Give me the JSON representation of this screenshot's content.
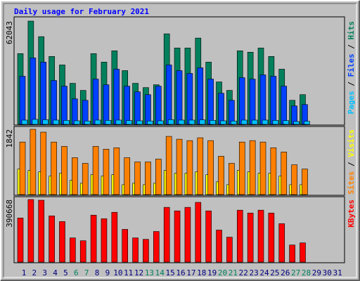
{
  "title": "Daily usage for February 2021",
  "legend_separator": " / ",
  "chart_data": [
    {
      "type": "bar",
      "ylim": [
        0,
        62043
      ],
      "yticks": [
        62043
      ],
      "series": [
        {
          "name": "Hits",
          "color": "#00805c",
          "values": [
            42495,
            62043,
            52694,
            40795,
            35696,
            24648,
            20398,
            42495,
            37396,
            44195,
            32297,
            24648,
            22097,
            23797,
            54394,
            45895,
            45895,
            51845,
            37396,
            25497,
            20398,
            44195,
            43345,
            45895,
            40795,
            33147,
            14448,
            17848,
            null,
            null,
            null
          ]
        },
        {
          "name": "Files",
          "color": "#0040ff",
          "values": [
            28897,
            39945,
            37396,
            26347,
            22947,
            15298,
            14448,
            27197,
            23797,
            33147,
            22947,
            19548,
            17848,
            22947,
            35696,
            32297,
            30597,
            33996,
            27197,
            18698,
            14448,
            28047,
            27197,
            29747,
            28897,
            22947,
            11049,
            11899,
            null,
            null,
            null
          ]
        },
        {
          "name": "Pages",
          "color": "#00c0ff",
          "values": [
            2550,
            2975,
            2800,
            2550,
            2400,
            2125,
            2000,
            2550,
            2400,
            2550,
            2250,
            2125,
            2000,
            2125,
            2800,
            2550,
            2550,
            2700,
            2400,
            2125,
            2000,
            2550,
            2550,
            2550,
            2400,
            2250,
            1700,
            1850,
            null,
            null,
            null
          ]
        }
      ]
    },
    {
      "type": "bar",
      "ylim": [
        0,
        1842
      ],
      "yticks": [
        1842
      ],
      "series": [
        {
          "name": "Visits",
          "color": "#ffff00",
          "values": [
            721,
            681,
            641,
            521,
            601,
            400,
            320,
            561,
            521,
            561,
            280,
            320,
            280,
            320,
            681,
            601,
            601,
            641,
            561,
            360,
            280,
            681,
            641,
            601,
            601,
            521,
            280,
            280,
            null,
            null,
            null
          ]
        },
        {
          "name": "Sites",
          "color": "#ff8000",
          "values": [
            1482,
            1842,
            1762,
            1482,
            1361,
            1041,
            881,
            1361,
            1281,
            1321,
            1041,
            921,
            921,
            1001,
            1642,
            1562,
            1522,
            1602,
            1522,
            1081,
            881,
            1482,
            1522,
            1482,
            1321,
            1201,
            841,
            721,
            null,
            null,
            null
          ]
        }
      ]
    },
    {
      "type": "bar",
      "ylim": [
        0,
        390668
      ],
      "yticks": [
        390668
      ],
      "categories": [
        "1",
        "2",
        "3",
        "4",
        "5",
        "6",
        "7",
        "8",
        "9",
        "10",
        "11",
        "12",
        "13",
        "14",
        "15",
        "16",
        "17",
        "18",
        "19",
        "20",
        "21",
        "22",
        "23",
        "24",
        "25",
        "26",
        "27",
        "28",
        "29",
        "30",
        "31"
      ],
      "category_colors": [
        "#000080",
        "#000080",
        "#000080",
        "#000080",
        "#000080",
        "#00805c",
        "#00805c",
        "#000080",
        "#000080",
        "#000080",
        "#000080",
        "#000080",
        "#00805c",
        "#00805c",
        "#000080",
        "#000080",
        "#000080",
        "#000080",
        "#000080",
        "#00805c",
        "#00805c",
        "#000080",
        "#000080",
        "#000080",
        "#000080",
        "#000080",
        "#00805c",
        "#00805c",
        "#000080",
        "#000080",
        "#000080"
      ],
      "series": [
        {
          "name": "KBytes",
          "color": "#ff0000",
          "values": [
            275243,
            390668,
            386229,
            288560,
            253069,
            150940,
            133182,
            293003,
            270806,
            310758,
            204213,
            150940,
            142061,
            190891,
            341834,
            319637,
            341834,
            372910,
            319637,
            199774,
            155379,
            324076,
            306319,
            324076,
            306319,
            239725,
            106546,
            119864,
            null,
            null,
            null
          ]
        }
      ]
    }
  ]
}
